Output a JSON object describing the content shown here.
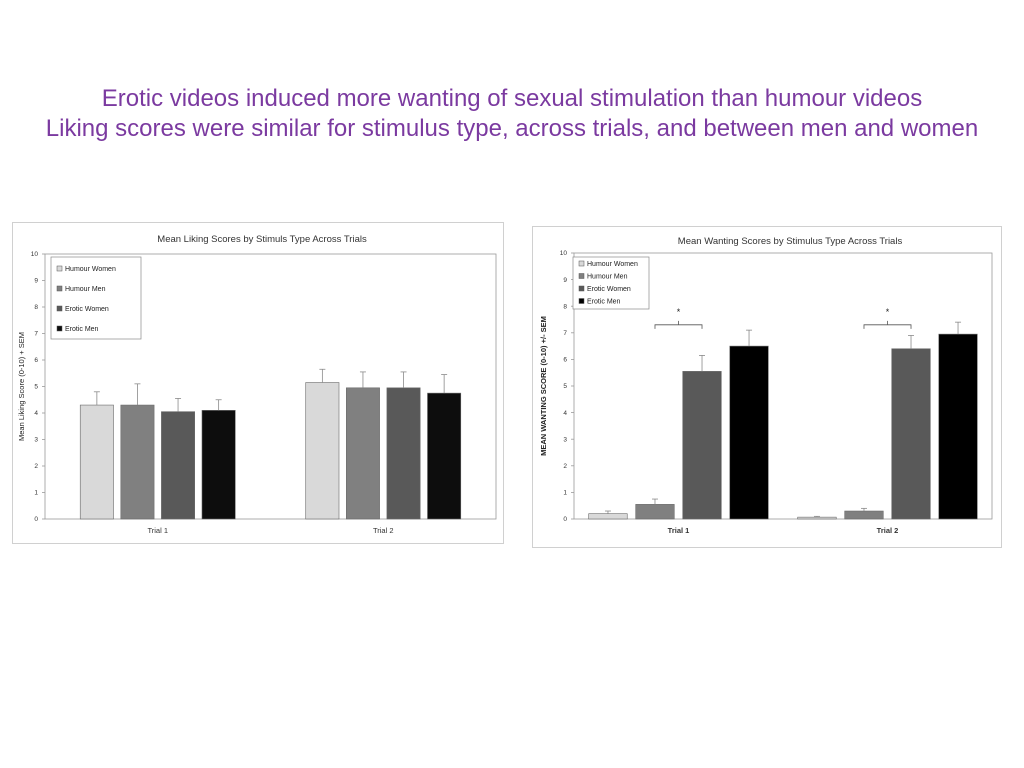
{
  "slide": {
    "title_line1": "Erotic videos induced more wanting of sexual stimulation than humour videos",
    "title_line2": "Liking scores were similar for stimulus type, across trials, and between men and women"
  },
  "colors": {
    "title": "#7b3aa0",
    "humour_women": "#d9d9d9",
    "humour_men": "#808080",
    "erotic_women": "#595959",
    "erotic_men_liking": "#0d0d0d",
    "erotic_men_wanting": "#000000"
  },
  "chart_data": [
    {
      "type": "bar",
      "title": "Mean Liking Scores by Stimuls Type Across Trials",
      "xlabel": "",
      "ylabel": "Mean Liking Score (0-10) + SEM",
      "categories": [
        "Trial 1",
        "Trial 2"
      ],
      "ylim": [
        0,
        10
      ],
      "yticks": [
        0,
        1,
        2,
        3,
        4,
        5,
        6,
        7,
        8,
        9,
        10
      ],
      "grid": false,
      "legend_position": "top-left",
      "series": [
        {
          "name": "Humour Women",
          "color": "#d9d9d9",
          "values": [
            4.3,
            5.15
          ],
          "errors": [
            0.5,
            0.5
          ]
        },
        {
          "name": "Humour Men",
          "color": "#808080",
          "values": [
            4.3,
            4.95
          ],
          "errors": [
            0.8,
            0.6
          ]
        },
        {
          "name": "Erotic Women",
          "color": "#595959",
          "values": [
            4.05,
            4.95
          ],
          "errors": [
            0.5,
            0.6
          ]
        },
        {
          "name": "Erotic Men",
          "color": "#0d0d0d",
          "values": [
            4.1,
            4.75
          ],
          "errors": [
            0.4,
            0.7
          ]
        }
      ],
      "annotations": []
    },
    {
      "type": "bar",
      "title": "Mean Wanting Scores by Stimulus Type Across Trials",
      "xlabel": "",
      "ylabel": "MEAN  WANTING SCORE (0-10) +/- SEM",
      "categories": [
        "Trial 1",
        "Trial 2"
      ],
      "ylim": [
        0,
        10
      ],
      "yticks": [
        0,
        1,
        2,
        3,
        4,
        5,
        6,
        7,
        8,
        9,
        10
      ],
      "grid": false,
      "legend_position": "top-left",
      "series": [
        {
          "name": "Humour Women",
          "color": "#d9d9d9",
          "values": [
            0.2,
            0.07
          ],
          "errors": [
            0.1,
            0.03
          ]
        },
        {
          "name": "Humour Men",
          "color": "#808080",
          "values": [
            0.55,
            0.3
          ],
          "errors": [
            0.2,
            0.1
          ]
        },
        {
          "name": "Erotic Women",
          "color": "#595959",
          "values": [
            5.55,
            6.4
          ],
          "errors": [
            0.6,
            0.5
          ]
        },
        {
          "name": "Erotic Men",
          "color": "#000000",
          "values": [
            6.5,
            6.95
          ],
          "errors": [
            0.6,
            0.45
          ]
        }
      ],
      "annotations": [
        {
          "text": "*",
          "category": "Trial 1"
        },
        {
          "text": "*",
          "category": "Trial 2"
        }
      ]
    }
  ]
}
